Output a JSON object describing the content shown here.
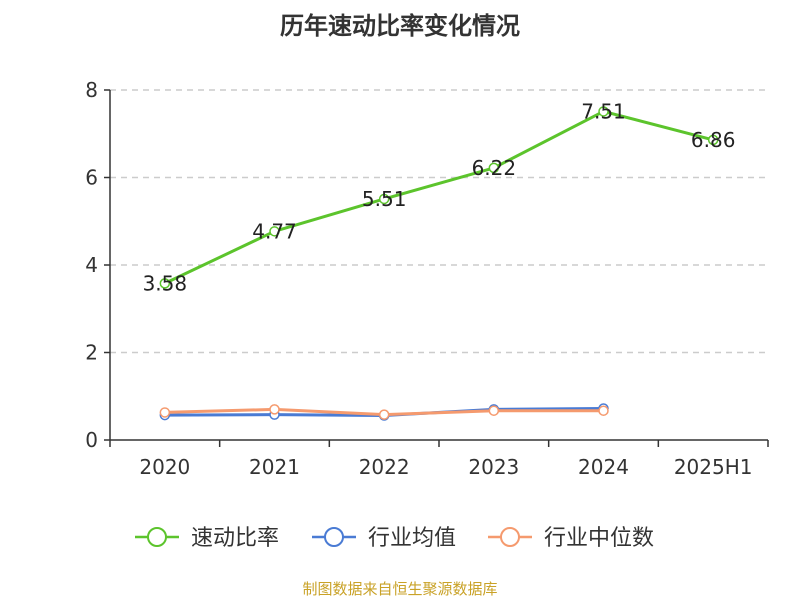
{
  "title": "历年速动比率变化情况",
  "source_note": "制图数据来自恒生聚源数据库",
  "colors": {
    "quick_ratio": "#5cc42c",
    "industry_mean": "#4a7bd4",
    "industry_median": "#f59a6e",
    "grid": "#cccccc",
    "axis": "#333333"
  },
  "chart_data": {
    "type": "line",
    "categories": [
      "2020",
      "2021",
      "2022",
      "2023",
      "2024",
      "2025H1"
    ],
    "ylim": [
      0,
      8
    ],
    "yticks": [
      0,
      2,
      4,
      6,
      8
    ],
    "grid": true,
    "legend_position": "bottom",
    "series": [
      {
        "name": "速动比率",
        "color": "#5cc42c",
        "values": [
          3.58,
          4.77,
          5.51,
          6.22,
          7.51,
          6.86
        ],
        "labels": [
          "3.58",
          "4.77",
          "5.51",
          "6.22",
          "7.51",
          "6.86"
        ]
      },
      {
        "name": "行业均值",
        "color": "#4a7bd4",
        "values": [
          0.57,
          0.58,
          0.56,
          0.7,
          0.72,
          null
        ]
      },
      {
        "name": "行业中位数",
        "color": "#f59a6e",
        "values": [
          0.63,
          0.7,
          0.58,
          0.67,
          0.67,
          null
        ]
      }
    ]
  }
}
